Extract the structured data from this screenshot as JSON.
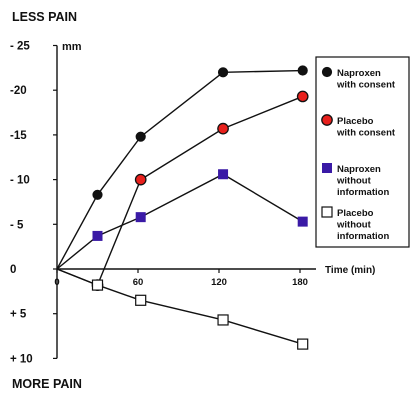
{
  "chart_data": {
    "type": "line",
    "top_label": "LESS PAIN",
    "bottom_label": "MORE PAIN",
    "y_unit": "mm",
    "xlabel": "Time (min)",
    "ylim": [
      10,
      -25
    ],
    "xlim": [
      0,
      180
    ],
    "x_ticks": [
      {
        "value": 0,
        "label": "0"
      },
      {
        "value": 60,
        "label": "60"
      },
      {
        "value": 120,
        "label": "120"
      },
      {
        "value": 180,
        "label": "180"
      }
    ],
    "y_ticks": [
      {
        "value": -25,
        "label": "- 25"
      },
      {
        "value": -20,
        "label": "-20"
      },
      {
        "value": -15,
        "label": "-15"
      },
      {
        "value": -10,
        "label": "- 10"
      },
      {
        "value": -5,
        "label": "- 5"
      },
      {
        "value": 0,
        "label": "0"
      },
      {
        "value": 5,
        "label": "+ 5"
      },
      {
        "value": 10,
        "label": "+ 10"
      }
    ],
    "series": [
      {
        "name_lines": [
          "Naproxen",
          "with consent"
        ],
        "marker": "filled-circle",
        "color": "#111111",
        "points": [
          [
            0,
            0
          ],
          [
            30,
            -8.3
          ],
          [
            62,
            -14.8
          ],
          [
            123,
            -22
          ],
          [
            182,
            -22.2
          ]
        ]
      },
      {
        "name_lines": [
          "Placebo",
          "with consent"
        ],
        "marker": "red-circle",
        "color": "#e8201c",
        "points": [
          [
            0,
            0
          ],
          [
            30,
            1.8
          ],
          [
            62,
            -10
          ],
          [
            123,
            -15.7
          ],
          [
            182,
            -19.3
          ]
        ]
      },
      {
        "name_lines": [
          "Naproxen",
          "without",
          "information"
        ],
        "marker": "filled-square",
        "color": "#3a1aa6",
        "points": [
          [
            0,
            0
          ],
          [
            30,
            -3.7
          ],
          [
            62,
            -5.8
          ],
          [
            123,
            -10.6
          ],
          [
            182,
            -5.3
          ]
        ]
      },
      {
        "name_lines": [
          "Placebo",
          "without",
          "information"
        ],
        "marker": "open-square",
        "color": "#ffffff",
        "points": [
          [
            0,
            0
          ],
          [
            30,
            1.8
          ],
          [
            62,
            3.5
          ],
          [
            123,
            5.7
          ],
          [
            182,
            8.4
          ]
        ]
      }
    ]
  }
}
